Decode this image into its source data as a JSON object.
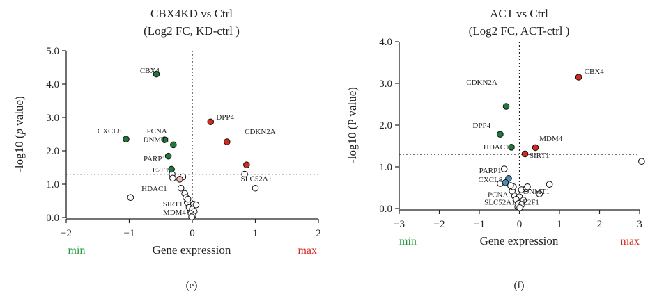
{
  "colors": {
    "up": "#d32a1e",
    "down": "#1e7a3a",
    "pink": "#f4b8b8",
    "blue": "#4a8fb6",
    "neutral": "#ffffff",
    "axis": "#222222",
    "min": "#1f9a37",
    "max": "#d32a1e"
  },
  "chart_data": [
    {
      "type": "scatter",
      "panel_label": "(e)",
      "title": "CBX4KD vs Ctrl",
      "subtitle": "(Log2 FC, KD-ctrl )",
      "xlabel": "Gene expression",
      "ylabel_pre": "-log10 (",
      "ylabel_italic": "p",
      "ylabel_post": " value)",
      "min_label": "min",
      "max_label": "max",
      "xlim": [
        -2,
        2
      ],
      "ylim": [
        0,
        5
      ],
      "xticks": [
        -2,
        -1,
        0,
        1,
        2
      ],
      "yticks": [
        0,
        1,
        2,
        3,
        4,
        5
      ],
      "xtick_labels": [
        "−2",
        "−1",
        "0",
        "1",
        "2"
      ],
      "ytick_labels": [
        "0.0",
        "1.0",
        "2.0",
        "3.0",
        "4.0",
        "5.0"
      ],
      "threshold_y": 1.3,
      "vline_x": 0,
      "points": [
        {
          "x": -0.57,
          "y": 4.3,
          "color": "down",
          "label": "CBX4",
          "lx": -0.52,
          "ly": 4.42,
          "anchor": "end"
        },
        {
          "x": 0.29,
          "y": 2.87,
          "color": "up",
          "label": "DPP4",
          "lx": 0.38,
          "ly": 3.02,
          "anchor": "start"
        },
        {
          "x": 0.55,
          "y": 2.27,
          "color": "up",
          "label": "CDKN2A",
          "lx": 0.83,
          "ly": 2.58,
          "anchor": "start"
        },
        {
          "x": -1.05,
          "y": 2.35,
          "color": "down",
          "label": "CXCL8",
          "lx": -1.12,
          "ly": 2.6,
          "anchor": "end"
        },
        {
          "x": -0.44,
          "y": 2.33,
          "color": "down",
          "label": "PCNA",
          "lx": -0.4,
          "ly": 2.6,
          "anchor": "end"
        },
        {
          "x": -0.3,
          "y": 2.18,
          "color": "down",
          "label": "DNMT1",
          "lx": -0.36,
          "ly": 2.34,
          "anchor": "end"
        },
        {
          "x": -0.38,
          "y": 1.84,
          "color": "down",
          "label": "PARP1",
          "lx": -0.42,
          "ly": 1.77,
          "anchor": "end"
        },
        {
          "x": -0.33,
          "y": 1.45,
          "color": "down",
          "label": "E2F1",
          "lx": -0.37,
          "ly": 1.44,
          "anchor": "end"
        },
        {
          "x": 0.86,
          "y": 1.58,
          "color": "up",
          "label": "SLC52A1",
          "lx": 0.77,
          "ly": 1.18,
          "anchor": "start"
        },
        {
          "x": -0.2,
          "y": 1.15,
          "color": "pink",
          "label": "HDAC1",
          "lx": -0.4,
          "ly": 0.88,
          "anchor": "end"
        },
        {
          "x": -0.08,
          "y": 0.45,
          "color": "neutral",
          "label": "SIRT1",
          "lx": -0.15,
          "ly": 0.42,
          "anchor": "end"
        },
        {
          "x": -0.03,
          "y": 0.2,
          "color": "neutral",
          "label": "MDM4",
          "lx": -0.1,
          "ly": 0.17,
          "anchor": "end"
        },
        {
          "x": -0.32,
          "y": 1.3,
          "color": "neutral",
          "label": ""
        },
        {
          "x": -0.15,
          "y": 1.22,
          "color": "neutral",
          "label": ""
        },
        {
          "x": -0.31,
          "y": 1.18,
          "color": "neutral",
          "label": ""
        },
        {
          "x": -0.18,
          "y": 0.88,
          "color": "neutral",
          "label": ""
        },
        {
          "x": -0.12,
          "y": 0.72,
          "color": "neutral",
          "label": ""
        },
        {
          "x": -0.1,
          "y": 0.6,
          "color": "neutral",
          "label": ""
        },
        {
          "x": -0.07,
          "y": 0.55,
          "color": "neutral",
          "label": ""
        },
        {
          "x": 0.02,
          "y": 0.4,
          "color": "neutral",
          "label": ""
        },
        {
          "x": 0.06,
          "y": 0.38,
          "color": "neutral",
          "label": ""
        },
        {
          "x": -0.05,
          "y": 0.3,
          "color": "neutral",
          "label": ""
        },
        {
          "x": 0.0,
          "y": 0.25,
          "color": "neutral",
          "label": ""
        },
        {
          "x": 0.03,
          "y": 0.18,
          "color": "neutral",
          "label": ""
        },
        {
          "x": -0.02,
          "y": 0.12,
          "color": "neutral",
          "label": ""
        },
        {
          "x": 0.01,
          "y": 0.06,
          "color": "neutral",
          "label": ""
        },
        {
          "x": -0.01,
          "y": 0.02,
          "color": "neutral",
          "label": ""
        },
        {
          "x": -0.98,
          "y": 0.6,
          "color": "neutral",
          "label": ""
        },
        {
          "x": 0.83,
          "y": 1.3,
          "color": "neutral",
          "label": ""
        },
        {
          "x": 1.0,
          "y": 0.88,
          "color": "neutral",
          "label": ""
        }
      ]
    },
    {
      "type": "scatter",
      "panel_label": "(f)",
      "title": "ACT vs Ctrl",
      "subtitle": "(Log2 FC, ACT-ctrl )",
      "xlabel": "Gene expression",
      "ylabel_pre": "-log10 (P value)",
      "ylabel_italic": "",
      "ylabel_post": "",
      "min_label": "min",
      "max_label": "max",
      "xlim": [
        -3,
        3
      ],
      "ylim": [
        0,
        4
      ],
      "xticks": [
        -3,
        -2,
        -1,
        0,
        1,
        2,
        3
      ],
      "yticks": [
        0,
        1,
        2,
        3,
        4
      ],
      "xtick_labels": [
        "−3",
        "−2",
        "−1",
        "0",
        "1",
        "2",
        "3"
      ],
      "ytick_labels": [
        "0.0",
        "1.0",
        "2.0",
        "3.0",
        "4.0"
      ],
      "threshold_y": 1.3,
      "vline_x": 0,
      "points": [
        {
          "x": 1.48,
          "y": 3.15,
          "color": "up",
          "label": "CBX4",
          "lx": 1.62,
          "ly": 3.3,
          "anchor": "start"
        },
        {
          "x": -0.33,
          "y": 2.45,
          "color": "down",
          "label": "CDKN2A",
          "lx": -0.55,
          "ly": 3.03,
          "anchor": "end"
        },
        {
          "x": -0.48,
          "y": 1.78,
          "color": "down",
          "label": "DPP4",
          "lx": -0.72,
          "ly": 2.0,
          "anchor": "end"
        },
        {
          "x": -0.2,
          "y": 1.47,
          "color": "down",
          "label": "HDAC1",
          "lx": -0.26,
          "ly": 1.48,
          "anchor": "end"
        },
        {
          "x": 0.4,
          "y": 1.46,
          "color": "up",
          "label": "MDM4",
          "lx": 0.5,
          "ly": 1.68,
          "anchor": "start"
        },
        {
          "x": 0.14,
          "y": 1.31,
          "color": "up",
          "label": "SIRT1",
          "lx": 0.25,
          "ly": 1.28,
          "anchor": "start"
        },
        {
          "x": -0.38,
          "y": 0.95,
          "color": "neutral",
          "label": "PARP1",
          "lx": -0.45,
          "ly": 0.92,
          "anchor": "end"
        },
        {
          "x": -0.27,
          "y": 0.72,
          "color": "blue",
          "label": "CXCL8",
          "lx": -0.42,
          "ly": 0.7,
          "anchor": "end"
        },
        {
          "x": -0.35,
          "y": 0.62,
          "color": "blue",
          "label": "",
          "lx": 0,
          "ly": 0,
          "anchor": "start"
        },
        {
          "x": -0.18,
          "y": 0.42,
          "color": "neutral",
          "label": "PCNA",
          "lx": -0.28,
          "ly": 0.34,
          "anchor": "end"
        },
        {
          "x": 0.05,
          "y": 0.45,
          "color": "neutral",
          "label": "DNMT1",
          "lx": 0.1,
          "ly": 0.42,
          "anchor": "start"
        },
        {
          "x": -0.05,
          "y": 0.18,
          "color": "neutral",
          "label": "SLC52A1",
          "lx": -0.1,
          "ly": 0.16,
          "anchor": "end"
        },
        {
          "x": 0.03,
          "y": 0.06,
          "color": "neutral",
          "label": "E2F1",
          "lx": 0.08,
          "ly": 0.16,
          "anchor": "start"
        },
        {
          "x": 3.05,
          "y": 1.13,
          "color": "neutral",
          "label": ""
        },
        {
          "x": 0.75,
          "y": 0.58,
          "color": "neutral",
          "label": ""
        },
        {
          "x": 0.5,
          "y": 0.35,
          "color": "neutral",
          "label": ""
        },
        {
          "x": -0.48,
          "y": 0.6,
          "color": "neutral",
          "label": ""
        },
        {
          "x": -0.15,
          "y": 0.52,
          "color": "neutral",
          "label": ""
        },
        {
          "x": 0.17,
          "y": 0.48,
          "color": "neutral",
          "label": ""
        },
        {
          "x": 0.2,
          "y": 0.52,
          "color": "neutral",
          "label": ""
        },
        {
          "x": -0.22,
          "y": 0.55,
          "color": "neutral",
          "label": ""
        },
        {
          "x": -0.12,
          "y": 0.3,
          "color": "neutral",
          "label": ""
        },
        {
          "x": 0.0,
          "y": 0.28,
          "color": "neutral",
          "label": ""
        },
        {
          "x": -0.08,
          "y": 0.22,
          "color": "neutral",
          "label": ""
        },
        {
          "x": 0.1,
          "y": 0.2,
          "color": "neutral",
          "label": ""
        },
        {
          "x": -0.02,
          "y": 0.12,
          "color": "neutral",
          "label": ""
        },
        {
          "x": 0.06,
          "y": 0.1,
          "color": "neutral",
          "label": ""
        },
        {
          "x": -0.04,
          "y": 0.04,
          "color": "neutral",
          "label": ""
        },
        {
          "x": 0.01,
          "y": 0.02,
          "color": "neutral",
          "label": ""
        }
      ]
    }
  ]
}
